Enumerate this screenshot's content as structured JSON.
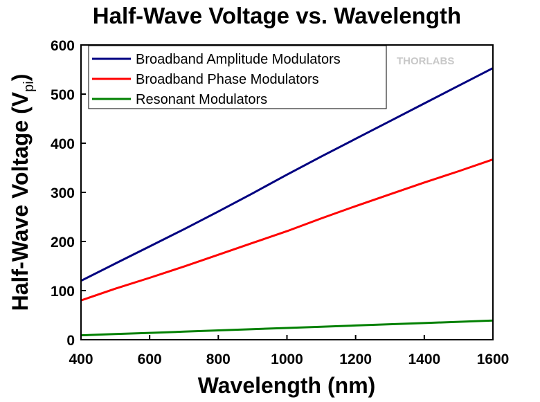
{
  "chart_data": {
    "type": "line",
    "title": "Half-Wave Voltage vs. Wavelength",
    "xlabel": "Wavelength (nm)",
    "ylabel_main": "Half-Wave Voltage (V",
    "ylabel_sub": "pi",
    "ylabel_close": ")",
    "xlim": [
      400,
      1600
    ],
    "ylim": [
      0,
      600
    ],
    "xticks": [
      400,
      600,
      800,
      1000,
      1200,
      1400,
      1600
    ],
    "yticks": [
      0,
      100,
      200,
      300,
      400,
      500,
      600
    ],
    "legend_position": "top-left",
    "watermark": "THORLABS",
    "series": [
      {
        "name": "Broadband Amplitude Modulators",
        "color": "#000080",
        "x": [
          400,
          500,
          600,
          700,
          800,
          900,
          1000,
          1100,
          1200,
          1300,
          1400,
          1500,
          1600
        ],
        "y": [
          120,
          155,
          190,
          225,
          261,
          298,
          336,
          373,
          409,
          445,
          481,
          517,
          553
        ]
      },
      {
        "name": "Broadband Phase Modulators",
        "color": "#ff0000",
        "x": [
          400,
          500,
          600,
          700,
          800,
          900,
          1000,
          1100,
          1200,
          1300,
          1400,
          1500,
          1600
        ],
        "y": [
          80,
          104,
          126,
          149,
          173,
          197,
          221,
          247,
          272,
          296,
          320,
          343,
          367
        ]
      },
      {
        "name": "Resonant Modulators",
        "color": "#008000",
        "x": [
          400,
          500,
          600,
          700,
          800,
          900,
          1000,
          1100,
          1200,
          1300,
          1400,
          1500,
          1600
        ],
        "y": [
          9,
          11.5,
          14,
          16.5,
          19,
          21.5,
          24,
          26.5,
          29,
          31.5,
          34,
          36.5,
          39
        ]
      }
    ]
  }
}
